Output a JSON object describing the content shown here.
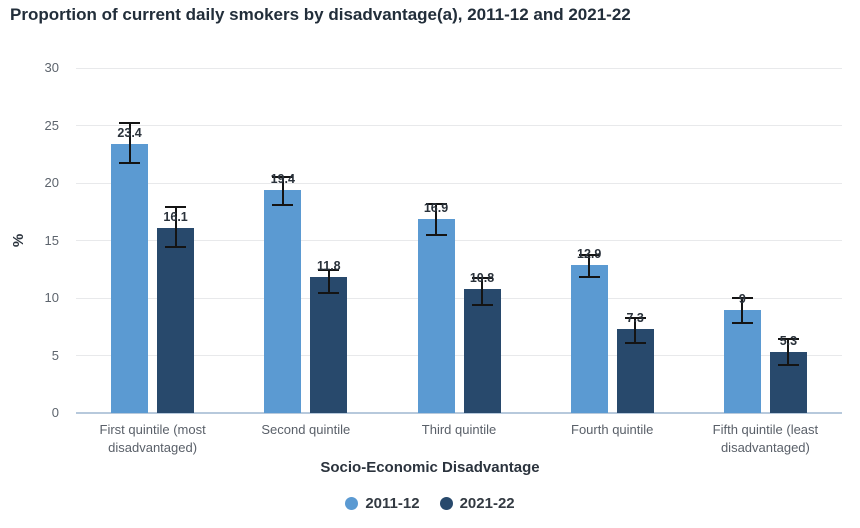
{
  "chart_data": {
    "type": "bar",
    "title": "Proportion of current daily smokers by disadvantage(a), 2011-12 and 2021-22",
    "xlabel": "Socio-Economic Disadvantage",
    "ylabel": "%",
    "ylim": [
      0,
      30
    ],
    "yticks": [
      0,
      5,
      10,
      15,
      20,
      25,
      30
    ],
    "grid": true,
    "legend_position": "bottom",
    "categories": [
      "First quintile (most disadvantaged)",
      "Second quintile",
      "Third quintile",
      "Fourth quintile",
      "Fifth quintile (least disadvantaged)"
    ],
    "series": [
      {
        "name": "2011-12",
        "color": "#5b9ad2",
        "values": [
          23.4,
          19.4,
          16.9,
          12.9,
          9
        ],
        "error_low": [
          21.7,
          18.1,
          15.5,
          11.8,
          7.8
        ],
        "error_high": [
          25.2,
          20.5,
          18.2,
          13.7,
          10.0
        ]
      },
      {
        "name": "2021-22",
        "color": "#28496c",
        "values": [
          16.1,
          11.8,
          10.8,
          7.3,
          5.3
        ],
        "error_low": [
          14.4,
          10.4,
          9.4,
          6.1,
          4.2
        ],
        "error_high": [
          17.9,
          12.4,
          11.7,
          8.3,
          6.4
        ]
      }
    ],
    "error_bar_color": "#141414",
    "baseline_color": "#b7c9dc",
    "gridline_color": "#e8e9eb"
  }
}
